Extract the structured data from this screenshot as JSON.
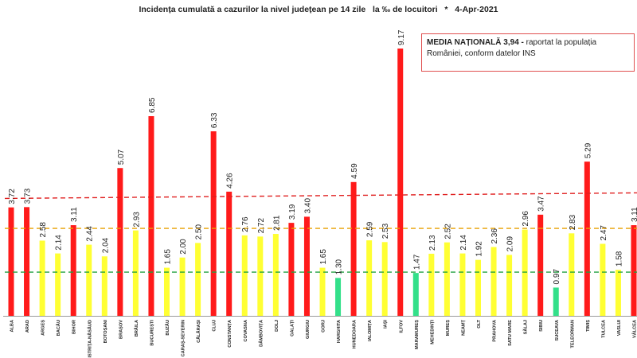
{
  "title": "Incidența cumulată a cazurilor la nivel județean pe 14 zile   la ‰ de locuitori   *   4-Apr-2021",
  "note": {
    "bold": "MEDIA NAȚIONALĂ 3,94 -",
    "text": " raportat la populația României, conform datelor INS"
  },
  "colors": {
    "red": "#ff1a1a",
    "yellow": "#ffff33",
    "green": "#33e08a"
  },
  "chart_data": {
    "type": "bar",
    "title": "Incidența cumulată a cazurilor la nivel județean pe 14 zile   la ‰ de locuitori   *   4-Apr-2021",
    "categories": [
      "ALBA",
      "ARAD",
      "ARGEȘ",
      "BACĂU",
      "BIHOR",
      "BISTRIȚA-NĂSĂUD",
      "BOTOȘANI",
      "BRAȘOV",
      "BRĂILA",
      "BUCUREȘTI",
      "BUZĂU",
      "CARAȘ-SEVERIN",
      "CĂLĂRAȘI",
      "CLUJ",
      "CONSTANȚA",
      "COVASNA",
      "DÂMBOVIȚA",
      "DOLJ",
      "GALAȚI",
      "GIURGIU",
      "GORJ",
      "HARGHITA",
      "HUNEDOARA",
      "IALOMIȚA",
      "IAȘI",
      "ILFOV",
      "MARAMUREȘ",
      "MEHEDINȚI",
      "MUREȘ",
      "NEAMȚ",
      "OLT",
      "PRAHOVA",
      "SATU MARE",
      "SĂLAJ",
      "SIBIU",
      "SUCEAVA",
      "TELEORMAN",
      "TIMIȘ",
      "TULCEA",
      "VASLUI",
      "VÂLCEA"
    ],
    "values": [
      3.72,
      3.73,
      2.58,
      2.14,
      3.11,
      2.44,
      2.04,
      5.07,
      2.93,
      6.85,
      1.65,
      2.0,
      2.5,
      6.33,
      4.26,
      2.76,
      2.72,
      2.81,
      3.19,
      3.4,
      1.65,
      1.3,
      4.59,
      2.59,
      2.53,
      9.17,
      1.47,
      2.13,
      2.52,
      2.14,
      1.92,
      2.36,
      2.09,
      2.96,
      3.47,
      0.97,
      2.83,
      5.29,
      2.47,
      1.58,
      3.11
    ],
    "value_labels": [
      "3.72",
      "3.73",
      "2.58",
      "2.14",
      "3.11",
      "2.44",
      "2.04",
      "5.07",
      "2.93",
      "6.85",
      "1.65",
      "2.00",
      "2.50",
      "6.33",
      "4.26",
      "2.76",
      "2.72",
      "2.81",
      "3.19",
      "3.40",
      "1.65",
      "1.30",
      "4.59",
      "2.59",
      "2.53",
      "9.17",
      "1.47",
      "2.13",
      "2.52",
      "2.14",
      "1.92",
      "2.36",
      "2.09",
      "2.96",
      "3.47",
      "0.97",
      "2.83",
      "5.29",
      "2.47",
      "1.58",
      "3.11"
    ],
    "bar_colors": [
      "red",
      "red",
      "yellow",
      "yellow",
      "red",
      "yellow",
      "yellow",
      "red",
      "yellow",
      "red",
      "yellow",
      "yellow",
      "yellow",
      "red",
      "red",
      "yellow",
      "yellow",
      "yellow",
      "red",
      "red",
      "yellow",
      "green",
      "red",
      "yellow",
      "yellow",
      "red",
      "green",
      "yellow",
      "yellow",
      "yellow",
      "yellow",
      "yellow",
      "yellow",
      "yellow",
      "red",
      "green",
      "yellow",
      "red",
      "yellow",
      "yellow",
      "red"
    ],
    "reference_lines": [
      {
        "value": 4.0,
        "color": "#e02020",
        "style": "dashed"
      },
      {
        "value": 3.0,
        "color": "#e8a000",
        "style": "dashed"
      },
      {
        "value": 1.5,
        "color": "#20a040",
        "style": "dashed"
      }
    ],
    "ylim": [
      0,
      9.4
    ],
    "grid": false,
    "legend": "top-right"
  }
}
